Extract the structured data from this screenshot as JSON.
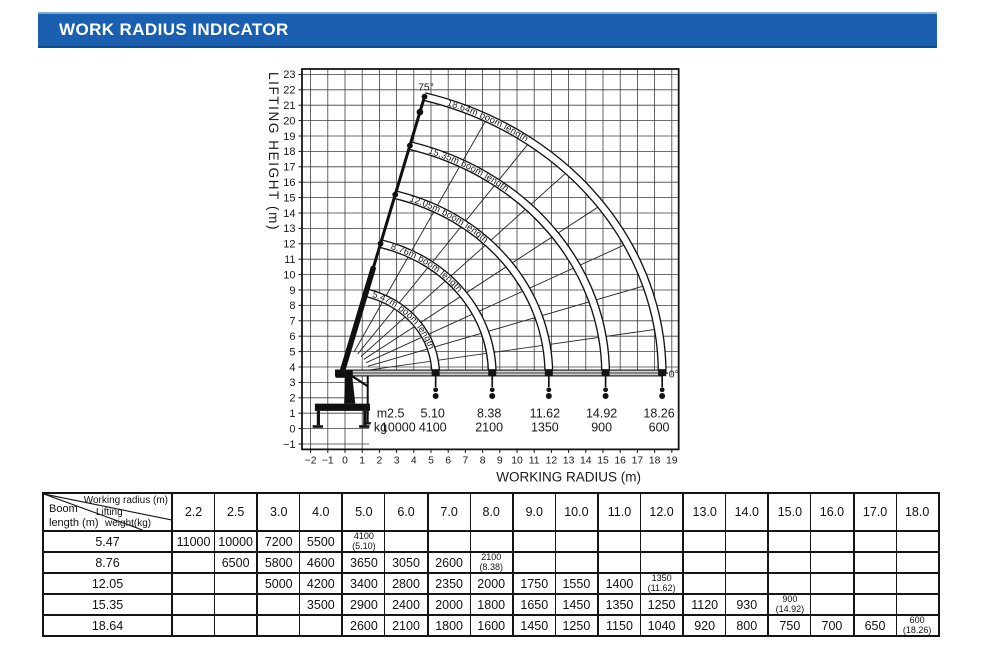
{
  "header": {
    "title": "WORK RADIUS INDICATOR",
    "bar_color": "#1b60b0"
  },
  "chart_data": {
    "type": "line",
    "title": "",
    "xlabel": "WORKING RADIUS (m)",
    "ylabel": "LIFTING HEIGHT (m)",
    "xlim": [
      -2.5,
      19.4
    ],
    "ylim": [
      -1.35,
      23.35
    ],
    "grid": "on",
    "x_ticks": [
      -2,
      -1,
      0,
      1,
      2,
      3,
      4,
      5,
      6,
      7,
      8,
      9,
      10,
      11,
      12,
      13,
      14,
      15,
      16,
      17,
      18,
      19
    ],
    "y_ticks": [
      -1,
      0,
      1,
      2,
      3,
      4,
      5,
      6,
      7,
      8,
      9,
      10,
      11,
      12,
      13,
      14,
      15,
      16,
      17,
      18,
      19,
      20,
      21,
      22,
      23
    ],
    "pivot": {
      "x": -0.2,
      "y": 3.55
    },
    "boom_max_angle_deg": 75,
    "boom_min_angle_deg": 0,
    "angle_label_max": "75°",
    "angle_label_min": "0°",
    "unlabeled_boom_angle_lines_deg": [
      9,
      18,
      27,
      36,
      45,
      54,
      63
    ],
    "booms": [
      {
        "length_m": 5.47,
        "label": "5.47m boom length",
        "radius_at_0deg_m": 5.1,
        "capacity_kg": 4100
      },
      {
        "length_m": 8.76,
        "label": "8.76m boom length",
        "radius_at_0deg_m": 8.38,
        "capacity_kg": 2100
      },
      {
        "length_m": 12.05,
        "label": "12.05m boom length",
        "radius_at_0deg_m": 11.62,
        "capacity_kg": 1350
      },
      {
        "length_m": 15.35,
        "label": "15.35m boom length",
        "radius_at_0deg_m": 14.92,
        "capacity_kg": 900
      },
      {
        "length_m": 18.64,
        "label": "18.64m boom length",
        "radius_at_0deg_m": 18.26,
        "capacity_kg": 600
      }
    ],
    "load_scale": {
      "row_m_label": "m",
      "row_kg_label": "kg",
      "radii_m": [
        "2.5",
        "5.10",
        "8.38",
        "11.62",
        "14.92",
        "18.26"
      ],
      "capacities_kg": [
        "10000",
        "4100",
        "2100",
        "1350",
        "900",
        "600"
      ]
    }
  },
  "table": {
    "corner": {
      "top": "Working radius (m)",
      "mid1": "Lifting",
      "mid2": "weight(kg)",
      "bot1": "Boom",
      "bot2": "length (m)"
    },
    "radius_columns": [
      "2.2",
      "2.5",
      "3.0",
      "4.0",
      "5.0",
      "6.0",
      "7.0",
      "8.0",
      "9.0",
      "10.0",
      "11.0",
      "12.0",
      "13.0",
      "14.0",
      "15.0",
      "16.0",
      "17.0",
      "18.0"
    ],
    "rows": [
      {
        "boom": "5.47",
        "cells": [
          "11000",
          "10000",
          "7200",
          "5500",
          "4100\n(5.10)",
          "",
          "",
          "",
          "",
          "",
          "",
          "",
          "",
          "",
          "",
          "",
          "",
          ""
        ]
      },
      {
        "boom": "8.76",
        "cells": [
          "",
          "6500",
          "5800",
          "4600",
          "3650",
          "3050",
          "2600",
          "2100\n(8.38)",
          "",
          "",
          "",
          "",
          "",
          "",
          "",
          "",
          "",
          ""
        ]
      },
      {
        "boom": "12.05",
        "cells": [
          "",
          "",
          "5000",
          "4200",
          "3400",
          "2800",
          "2350",
          "2000",
          "1750",
          "1550",
          "1400",
          "1350\n(11.62)",
          "",
          "",
          "",
          "",
          "",
          ""
        ]
      },
      {
        "boom": "15.35",
        "cells": [
          "",
          "",
          "",
          "3500",
          "2900",
          "2400",
          "2000",
          "1800",
          "1650",
          "1450",
          "1350",
          "1250",
          "1120",
          "930",
          "900\n(14.92)",
          "",
          "",
          ""
        ]
      },
      {
        "boom": "18.64",
        "cells": [
          "",
          "",
          "",
          "",
          "2600",
          "2100",
          "1800",
          "1600",
          "1450",
          "1250",
          "1150",
          "1040",
          "920",
          "800",
          "750",
          "700",
          "650",
          "600\n(18.26)"
        ]
      }
    ]
  }
}
